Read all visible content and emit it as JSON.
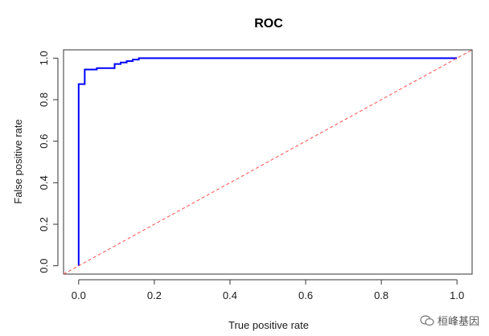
{
  "chart_data": {
    "type": "line",
    "title": "ROC",
    "xlabel": "True positive rate",
    "ylabel": "False positive rate",
    "xlim": [
      -0.04,
      1.04
    ],
    "ylim": [
      -0.04,
      1.04
    ],
    "xticks": [
      0.0,
      0.2,
      0.4,
      0.6,
      0.8,
      1.0
    ],
    "yticks": [
      0.0,
      0.2,
      0.4,
      0.6,
      0.8,
      1.0
    ],
    "xtick_labels": [
      "0.0",
      "0.2",
      "0.4",
      "0.6",
      "0.8",
      "1.0"
    ],
    "ytick_labels": [
      "0.0",
      "0.2",
      "0.4",
      "0.6",
      "0.8",
      "1.0"
    ],
    "grid": false,
    "series": [
      {
        "color": "#0000ff",
        "style": "solid",
        "x": [
          0.0,
          0.0,
          0.0,
          0.0,
          0.016,
          0.016,
          0.048,
          0.048,
          0.095,
          0.095,
          0.111,
          0.111,
          0.127,
          0.127,
          0.143,
          0.143,
          0.159,
          0.159,
          1.0
        ],
        "y": [
          0.0,
          0.5,
          0.875,
          0.875,
          0.875,
          0.945,
          0.945,
          0.952,
          0.952,
          0.972,
          0.972,
          0.979,
          0.979,
          0.986,
          0.986,
          0.993,
          0.993,
          1.0,
          1.0
        ]
      },
      {
        "color": "#ff4d4d",
        "style": "dashed",
        "x": [
          -0.04,
          1.04
        ],
        "y": [
          -0.04,
          1.04
        ]
      }
    ]
  },
  "watermark": {
    "text": "桓峰基因",
    "icon": "wechat-icon"
  }
}
